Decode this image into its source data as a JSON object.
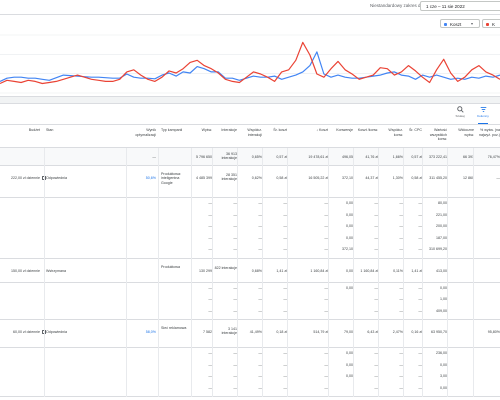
{
  "header": {
    "range_label": "Niestandardowy zakres dat",
    "date_range": "1 cze – 11 sie 2022"
  },
  "chart_controls": {
    "metric_a": {
      "label": "Koszt",
      "color": "#4285f4"
    },
    "metric_b": {
      "label": "K",
      "color": "#ea4335"
    }
  },
  "chart_data": {
    "type": "line",
    "x": [
      1,
      2,
      3,
      4,
      5,
      6,
      7,
      8,
      9,
      10,
      11,
      12,
      13,
      14,
      15,
      16,
      17,
      18,
      19,
      20,
      21,
      22,
      23,
      24,
      25,
      26,
      27,
      28,
      29,
      30,
      31,
      32,
      33,
      34,
      35,
      36,
      37,
      38,
      39,
      40,
      41,
      42,
      43,
      44,
      45,
      46,
      47,
      48,
      49,
      50,
      51,
      52,
      53,
      54,
      55,
      56,
      57,
      58,
      59,
      60,
      61,
      62,
      63,
      64,
      65,
      66,
      67,
      68,
      69,
      70,
      71,
      72
    ],
    "series": [
      {
        "color": "#4285f4",
        "values": [
          22,
          28,
          30,
          30,
          28,
          28,
          26,
          24,
          29,
          34,
          33,
          32,
          31,
          30,
          30,
          29,
          28,
          28,
          36,
          30,
          28,
          28,
          27,
          34,
          38,
          32,
          40,
          38,
          50,
          46,
          40,
          40,
          28,
          28,
          24,
          28,
          32,
          30,
          30,
          32,
          26,
          30,
          34,
          40,
          52,
          78,
          36,
          30,
          34,
          30,
          28,
          28,
          30,
          32,
          34,
          38,
          40,
          34,
          32,
          26,
          34,
          30,
          34,
          30,
          26,
          28,
          26,
          30,
          28,
          32,
          30,
          34
        ]
      },
      {
        "color": "#ea4335",
        "values": [
          18,
          24,
          22,
          20,
          24,
          22,
          18,
          20,
          22,
          26,
          30,
          34,
          30,
          26,
          24,
          22,
          22,
          26,
          40,
          44,
          34,
          26,
          22,
          30,
          42,
          38,
          46,
          58,
          62,
          52,
          46,
          38,
          26,
          22,
          20,
          30,
          40,
          36,
          30,
          22,
          40,
          44,
          62,
          96,
          72,
          36,
          30,
          46,
          60,
          44,
          36,
          26,
          30,
          34,
          48,
          46,
          34,
          40,
          52,
          42,
          30,
          20,
          44,
          64,
          38,
          22,
          30,
          44,
          52,
          40,
          34,
          26
        ]
      }
    ],
    "ylim": [
      0,
      110
    ],
    "grid": true
  },
  "toolbar": {
    "search_label": "Szukaj",
    "columns_label": "Kolumny"
  },
  "table": {
    "headers": [
      "Budżet",
      "Stan",
      "Wynik optymalizacji",
      "Typ kampanii",
      "Wyśw.",
      "Interakcje",
      "Współcz. interakcji",
      "Śr. koszt",
      "↓ Koszt",
      "Konwersje",
      "Koszt /konw.",
      "Współcz. konw.",
      "Śr. CPC",
      "Wartość wszystkich konw.",
      "Widoczne wyśw.",
      "% wyśw. (na najwyż. poz.)"
    ],
    "total": {
      "opt": "—",
      "impr": "5 796 650",
      "inter": "36 913 interakcje",
      "rate": "0,65%",
      "avgcost": "0,57 zł",
      "cost": "19 478,61 zł",
      "conv": "496,05",
      "costconv": "41,76 zł",
      "convrate": "1,66%",
      "cpc": "0,57 zł",
      "value": "373 222,41",
      "viewable": "66 391",
      "top": "76,47%"
    },
    "campaigns": [
      {
        "budget": "222,00 zł dziennie",
        "status": "Odpowiednia",
        "opt": "50,6%",
        "type": "Produktowa: inteligentna Google",
        "impr": "4 485 399",
        "inter": "28 351 interakcje",
        "rate": "0,62%",
        "avgcost": "0,58 zł",
        "cost": "16 505,22 zł",
        "conv": "372,10",
        "costconv": "44,37 zł",
        "convrate": "1,30%",
        "cpc": "0,58 zł",
        "value": "311 455,20",
        "viewable": "12 860",
        "top": "—",
        "sub": [
          {
            "conv": "0,00",
            "value": "80,00"
          },
          {
            "conv": "0,00",
            "value": "221,00"
          },
          {
            "conv": "0,00",
            "value": "200,00"
          },
          {
            "conv": "0,00",
            "value": "187,00"
          },
          {
            "conv": "372,10",
            "value": "310 699,20"
          }
        ]
      },
      {
        "budget": "150,00 zł dziennie",
        "status": "Wstrzymana",
        "opt": "",
        "type": "Produktowa",
        "impr": "130 299",
        "inter": "822 interakcje",
        "rate": "0,68%",
        "avgcost": "1,41 zł",
        "cost": "1 160,84 zł",
        "conv": "0,00",
        "costconv": "1 160,84 zł",
        "convrate": "0,11%",
        "cpc": "1,41 zł",
        "value": "413,00",
        "viewable": "",
        "top": "",
        "sub": [
          {
            "conv": "0,00",
            "value": "0,00"
          },
          {
            "conv": "",
            "value": "1,00"
          },
          {
            "conv": "",
            "value": "409,00"
          }
        ]
      },
      {
        "budget": "60,00 zł dziennie",
        "status": "Odpowiednia",
        "opt": "58,0%",
        "type": "Sieć reklamowa",
        "impr": "7 582",
        "inter": "3 141 interakcje",
        "rate": "41,49%",
        "avgcost": "0,18 zł",
        "cost": "514,79 zł",
        "conv": "79,00",
        "costconv": "6,43 zł",
        "convrate": "2,47%",
        "cpc": "0,16 zł",
        "value": "63 950,70",
        "viewable": "",
        "top": "95,80%",
        "sub": [
          {
            "conv": "0,00",
            "value": "236,00"
          },
          {
            "conv": "0,00",
            "value": "0,00"
          },
          {
            "conv": "0,00",
            "value": "3,00"
          },
          {
            "conv": "",
            "value": "0,00"
          }
        ]
      }
    ]
  }
}
